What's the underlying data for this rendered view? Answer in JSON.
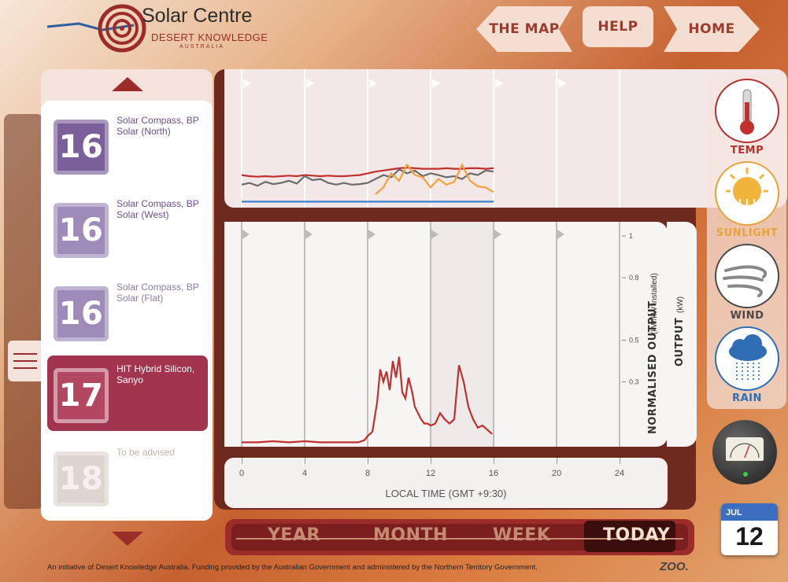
{
  "header": {
    "logo_title": "Solar Centre",
    "logo_subtitle": "DESERT KNOWLEDGE",
    "logo_region": "AUSTRALIA",
    "nav": [
      {
        "label": "THE MAP"
      },
      {
        "label": "HELP"
      },
      {
        "label": "HOME"
      }
    ]
  },
  "product_list": {
    "items": [
      {
        "number": "16",
        "name": "Solar Compass, BP Solar (North)",
        "state": "normal"
      },
      {
        "number": "16",
        "name": "Solar Compass, BP Solar (West)",
        "state": "normal"
      },
      {
        "number": "16",
        "name": "Solar Compass, BP Solar (Flat)",
        "state": "normal"
      },
      {
        "number": "17",
        "name": "HIT Hybrid Silicon, Sanyo",
        "state": "selected"
      },
      {
        "number": "18",
        "name": "To be advised",
        "state": "disabled"
      }
    ]
  },
  "sensors": [
    {
      "label": "TEMP",
      "icon": "thermometer-icon",
      "color": "#b3312f"
    },
    {
      "label": "SUNLIGHT",
      "icon": "sun-icon",
      "color": "#e8a23a"
    },
    {
      "label": "WIND",
      "icon": "wind-icon",
      "color": "#4a4a4a"
    },
    {
      "label": "RAIN",
      "icon": "rain-cloud-icon",
      "color": "#2f6db5"
    }
  ],
  "chart_data": [
    {
      "type": "line",
      "x": [
        0,
        0.5,
        1,
        1.5,
        2,
        2.5,
        3,
        3.5,
        4,
        4.5,
        5,
        5.5,
        6,
        6.5,
        7,
        7.5,
        8,
        8.5,
        9,
        9.5,
        10,
        10.5,
        11,
        11.5,
        12,
        12.5,
        13,
        13.5,
        14,
        14.5,
        15,
        15.5,
        16
      ],
      "series": [
        {
          "color": "#c0302c",
          "values": [
            0.52,
            0.5,
            0.49,
            0.5,
            0.49,
            0.5,
            0.51,
            0.5,
            0.52,
            0.51,
            0.5,
            0.51,
            0.5,
            0.5,
            0.51,
            0.52,
            0.55,
            0.58,
            0.6,
            0.62,
            0.64,
            0.65,
            0.64,
            0.63,
            0.63,
            0.63,
            0.64,
            0.63,
            0.63,
            0.64,
            0.64,
            0.63,
            0.64
          ]
        },
        {
          "color": "#6b6b6b",
          "values": [
            0.35,
            0.38,
            0.33,
            0.4,
            0.36,
            0.38,
            0.42,
            0.37,
            0.5,
            0.43,
            0.45,
            0.38,
            0.35,
            0.38,
            0.35,
            0.36,
            0.38,
            0.45,
            0.52,
            0.48,
            0.62,
            0.55,
            0.6,
            0.5,
            0.55,
            0.52,
            0.48,
            0.5,
            0.45,
            0.55,
            0.52,
            0.6,
            0.58
          ]
        },
        {
          "color": "#f2a03a",
          "values": [
            null,
            null,
            null,
            null,
            null,
            null,
            null,
            null,
            null,
            null,
            null,
            null,
            null,
            null,
            null,
            null,
            null,
            0.18,
            0.3,
            0.55,
            0.42,
            0.7,
            0.52,
            0.48,
            0.3,
            0.45,
            0.35,
            0.4,
            0.7,
            0.42,
            0.32,
            0.3,
            0.22
          ]
        },
        {
          "color": "#3a7fd0",
          "values": [
            0.05,
            0.05,
            0.05,
            0.05,
            0.05,
            0.05,
            0.05,
            0.05,
            0.05,
            0.05,
            0.05,
            0.05,
            0.05,
            0.05,
            0.05,
            0.05,
            0.05,
            0.05,
            0.05,
            0.05,
            0.05,
            0.05,
            0.05,
            0.05,
            0.05,
            0.05,
            0.05,
            0.05,
            0.05,
            0.05,
            0.05,
            0.05,
            0.05
          ]
        }
      ],
      "xlim": [
        0,
        24
      ],
      "grid": true
    },
    {
      "type": "line",
      "xlabel": "LOCAL TIME (GMT +9:30)",
      "ylabel": "NORMALISED OUTPUT",
      "ylabel_unit": "(kW/kW installed)",
      "y2label": "OUTPUT",
      "y2label_unit": "(kW)",
      "x_ticks": [
        0,
        4,
        8,
        12,
        16,
        20,
        24
      ],
      "y_ticks": [
        0.3,
        0.5,
        0.8,
        1
      ],
      "xlim": [
        0,
        24
      ],
      "ylim": [
        0,
        1
      ],
      "grid": true,
      "series": [
        {
          "color": "#c0302c",
          "x": [
            0,
            1,
            2,
            3,
            4,
            5,
            6,
            7,
            7.4,
            7.8,
            8,
            8.3,
            8.6,
            8.8,
            9,
            9.2,
            9.4,
            9.6,
            9.8,
            10,
            10.2,
            10.4,
            10.6,
            10.8,
            11,
            11.2,
            11.4,
            11.6,
            11.8,
            12,
            12.3,
            12.6,
            12.9,
            13.2,
            13.5,
            13.8,
            14.1,
            14.4,
            14.7,
            15,
            15.3,
            15.6,
            15.9
          ],
          "values": [
            0.01,
            0.01,
            0.015,
            0.01,
            0.015,
            0.01,
            0.01,
            0.01,
            0.01,
            0.02,
            0.04,
            0.06,
            0.2,
            0.36,
            0.3,
            0.35,
            0.26,
            0.4,
            0.32,
            0.42,
            0.25,
            0.22,
            0.32,
            0.26,
            0.18,
            0.15,
            0.12,
            0.1,
            0.1,
            0.09,
            0.1,
            0.15,
            0.12,
            0.1,
            0.12,
            0.38,
            0.3,
            0.18,
            0.12,
            0.08,
            0.09,
            0.07,
            0.05
          ]
        }
      ]
    }
  ],
  "periods": [
    {
      "label": "YEAR",
      "active": false
    },
    {
      "label": "MONTH",
      "active": false
    },
    {
      "label": "WEEK",
      "active": false
    },
    {
      "label": "TODAY",
      "active": true
    }
  ],
  "calendar": {
    "month": "JUL",
    "day": "12"
  },
  "footer": {
    "text": "An initiative of Desert Knowledge Australia. Funding provided by the Australian Government and administered by the Northern Territory Government.",
    "credit": "ZOO."
  }
}
